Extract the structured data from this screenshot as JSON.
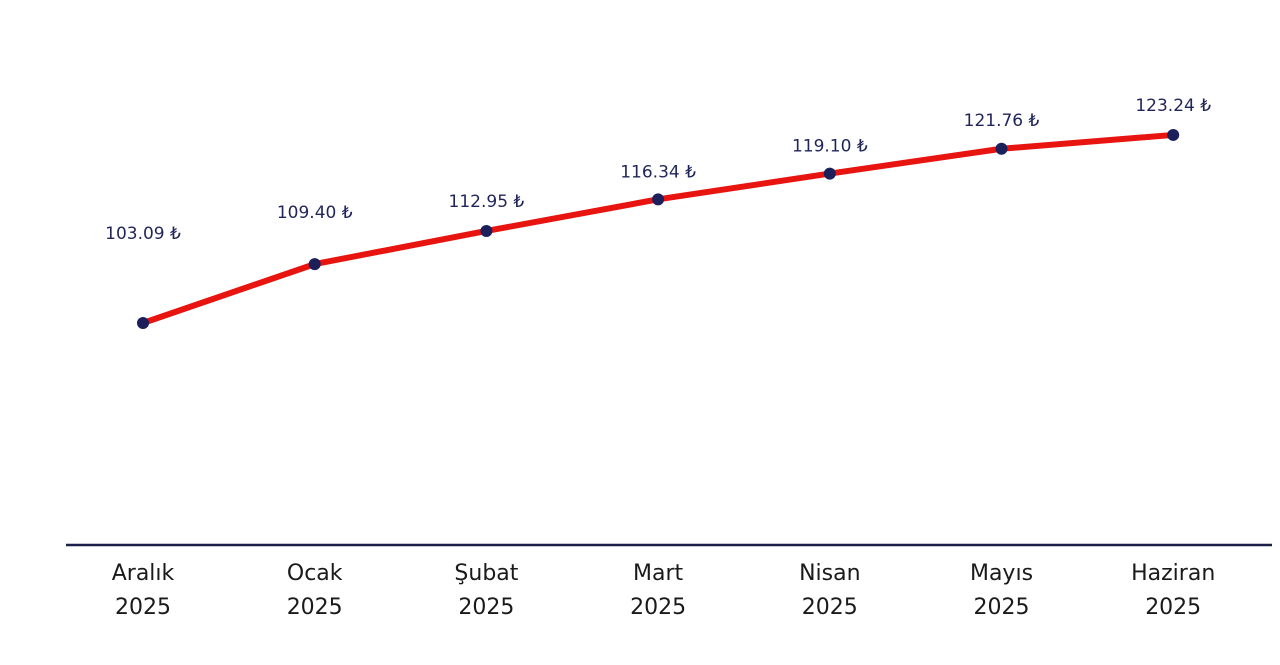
{
  "chart_data": {
    "type": "line",
    "title": "",
    "xlabel": "",
    "ylabel": "",
    "categories": [
      [
        "Aralık",
        "2025"
      ],
      [
        "Ocak",
        "2025"
      ],
      [
        "Şubat",
        "2025"
      ],
      [
        "Mart",
        "2025"
      ],
      [
        "Nisan",
        "2025"
      ],
      [
        "Mayıs",
        "2025"
      ],
      [
        "Haziran",
        "2025"
      ]
    ],
    "values": [
      103.09,
      109.4,
      112.95,
      116.34,
      119.1,
      121.76,
      123.24
    ],
    "data_labels": [
      "103.09 ₺",
      "109.40 ₺",
      "112.95 ₺",
      "116.34 ₺",
      "119.10 ₺",
      "121.76 ₺",
      "123.24 ₺"
    ],
    "ylim": [
      79.3,
      137.7
    ],
    "grid": false,
    "legend": "none",
    "colors": {
      "line": "#e8140f",
      "marker": "#1b1f5a",
      "label": "#1f2559",
      "axis": "#1b1f4a"
    }
  }
}
